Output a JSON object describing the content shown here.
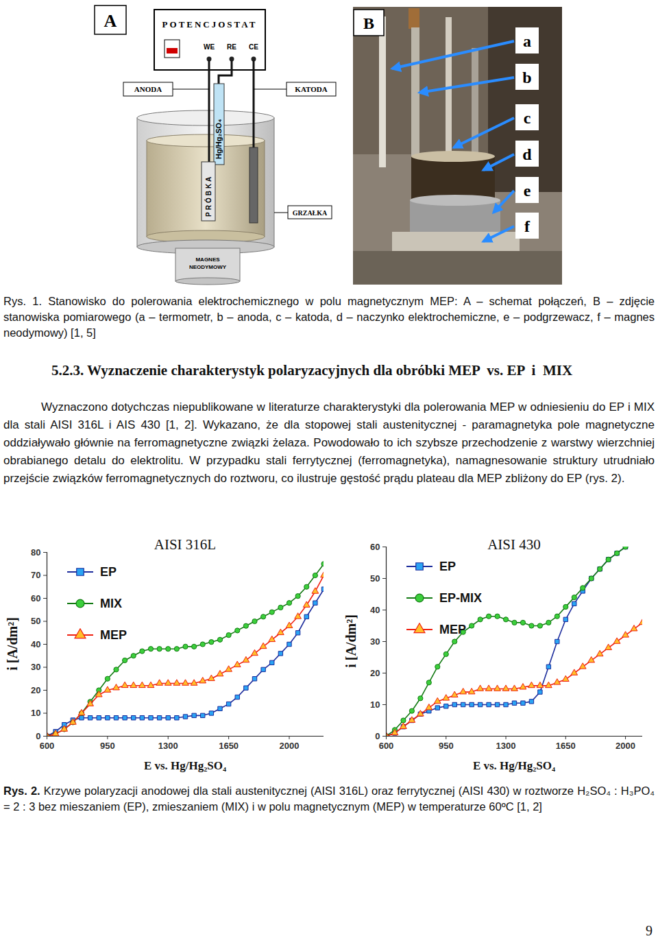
{
  "figure_1": {
    "panel_a": {
      "label": "A",
      "potentiostat": "POTENCJOSTAT",
      "terminals": [
        "WE",
        "RE",
        "CE"
      ],
      "anode": "ANODA",
      "cathode": "KATODA",
      "reference": "Hg/Hg₂SO₄",
      "sample": "PRÓBKA",
      "heater": "GRZAŁKA",
      "magnet": [
        "MAGNES",
        "NEODYMOWY"
      ]
    },
    "panel_b": {
      "label": "B",
      "markers": [
        "a",
        "b",
        "c",
        "d",
        "e",
        "f"
      ]
    }
  },
  "caption_1": {
    "label": "Rys. 1.",
    "text": "Stanowisko do polerowania elektrochemicznego w polu magnetycznym MEP: A – schemat połączeń, B – zdjęcie stanowiska pomiarowego (a – termometr, b – anoda, c – katoda, d – naczynko elektrochemiczne, e – podgrzewacz, f – magnes neodymowy) [1, 5]"
  },
  "heading": "5.2.3. Wyznaczenie charakterystyk polaryzacyjnych dla obróbki MEP  vs. EP  i  MIX",
  "paragraph": "Wyznaczono dotychczas niepublikowane w literaturze charakterystyki dla polerowania MEP w odniesieniu do EP i MIX dla stali AISI 316L i  AIS 430 [1, 2]. Wykazano, że dla stopowej stali austenitycznej - paramagnetyka pole magnetyczne oddziaływało głównie na ferromagnetyczne związki żelaza. Powodowało to ich szybsze przechodzenie z warstwy wierzchniej obrabianego detalu do elektrolitu. W przypadku stali ferrytycznej (ferromagnetyka), namagnesowanie struktury utrudniało przejście związków ferromagnetycznych do roztworu, co ilustruje gęstość prądu plateau dla MEP zbliżony do EP (rys. 2).",
  "chart_data": [
    {
      "type": "line",
      "title": "AISI 316L",
      "x_label": "E vs. Hg/Hg₂SO₄",
      "y_label": "i [A/dm²]",
      "x": [
        600,
        650,
        700,
        750,
        800,
        850,
        900,
        950,
        1000,
        1050,
        1100,
        1150,
        1200,
        1250,
        1300,
        1350,
        1400,
        1450,
        1500,
        1550,
        1600,
        1650,
        1700,
        1750,
        1800,
        1850,
        1900,
        1950,
        2000,
        2050,
        2100,
        2150,
        2200
      ],
      "xlim": [
        600,
        2200
      ],
      "ylim": [
        0,
        80
      ],
      "xticks": [
        600,
        950,
        1300,
        1650,
        2000
      ],
      "yticks": [
        0,
        10,
        20,
        30,
        40,
        50,
        60,
        70,
        80
      ],
      "legend": "upper left",
      "series": [
        {
          "name": "EP",
          "color": "#1c2c9c",
          "marker": "square",
          "values": [
            0,
            2,
            5,
            7,
            8,
            8,
            8,
            8,
            8,
            8,
            8,
            8,
            8,
            8,
            8,
            8,
            8.5,
            9,
            9,
            10,
            12,
            14,
            17,
            21,
            25,
            29,
            32,
            36,
            40,
            45,
            52,
            58,
            64
          ]
        },
        {
          "name": "MIX",
          "color": "#137a13",
          "marker": "circle",
          "values": [
            0,
            1,
            3,
            6,
            10,
            15,
            20,
            25,
            29,
            33,
            35,
            37,
            38,
            38,
            38,
            38,
            39,
            39,
            40,
            41,
            42,
            44,
            46,
            48,
            50,
            52,
            54,
            56,
            58,
            61,
            65,
            70,
            75
          ]
        },
        {
          "name": "MEP",
          "color": "#f02010",
          "marker": "triangle",
          "values": [
            0,
            1,
            3,
            6,
            10,
            14,
            18,
            20,
            21,
            22,
            22,
            22,
            22,
            23,
            23,
            23,
            23,
            23,
            24,
            25,
            27,
            29,
            31,
            33,
            36,
            39,
            42,
            45,
            48,
            52,
            57,
            63,
            70
          ]
        }
      ]
    },
    {
      "type": "line",
      "title": "AISI 430",
      "x_label": "E vs. Hg/Hg₂SO₄",
      "y_label": "i [A/dm²]",
      "x": [
        600,
        650,
        700,
        750,
        800,
        850,
        900,
        950,
        1000,
        1050,
        1100,
        1150,
        1200,
        1250,
        1300,
        1350,
        1400,
        1450,
        1500,
        1550,
        1600,
        1650,
        1700,
        1750,
        1800,
        1850,
        1900,
        1950,
        2000,
        2050,
        2100
      ],
      "xlim": [
        600,
        2100
      ],
      "ylim": [
        0,
        60
      ],
      "xticks": [
        600,
        950,
        1300,
        1650,
        2000
      ],
      "yticks": [
        0,
        10,
        20,
        30,
        40,
        50,
        60
      ],
      "legend": "upper left",
      "series": [
        {
          "name": "EP",
          "color": "#1c2c9c",
          "marker": "square",
          "values": [
            0,
            1,
            3,
            5,
            7,
            8,
            9,
            9.5,
            10,
            10,
            10,
            10,
            10,
            10,
            10,
            10.5,
            10.5,
            11,
            14,
            22,
            30,
            37,
            42,
            46,
            50,
            53,
            56,
            58,
            60,
            null,
            null
          ]
        },
        {
          "name": "EP-MIX",
          "color": "#137a13",
          "marker": "circle",
          "values": [
            0,
            2,
            5,
            8,
            12,
            17,
            22,
            26,
            30,
            33,
            35,
            37,
            38,
            38,
            37,
            36,
            36,
            35,
            35,
            36,
            38,
            41,
            44,
            47,
            50,
            53,
            56,
            58,
            60,
            null,
            null
          ]
        },
        {
          "name": "MEP",
          "color": "#f02010",
          "marker": "triangle",
          "values": [
            0,
            1,
            3,
            5,
            7,
            9,
            11,
            12,
            13,
            14,
            14,
            15,
            15,
            15,
            15,
            15,
            15.5,
            16,
            16,
            16,
            17,
            18,
            20,
            22,
            24,
            26,
            28,
            30,
            32,
            34,
            36
          ]
        }
      ]
    }
  ],
  "caption_2": {
    "label": "Rys. 2.",
    "text": "Krzywe polaryzacji anodowej dla stali austenitycznej (AISI 316L) oraz ferrytycznej (AISI 430) w roztworze H₂SO₄ : H₃PO₄ = 2 : 3 bez mieszaniem (EP),  zmieszaniem (MIX) i w polu magnetycznym (MEP) w temperaturze 60ºC [1, 2]"
  },
  "page_number": "9"
}
